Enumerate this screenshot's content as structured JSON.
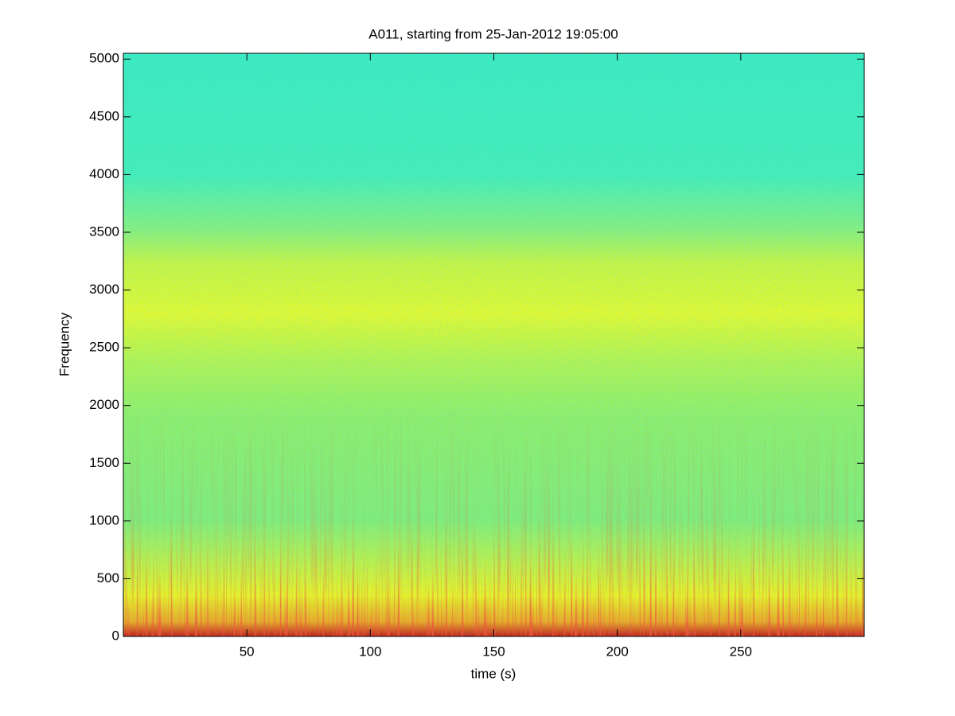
{
  "chart_data": {
    "type": "spectrogram",
    "title": "A011, starting from 25-Jan-2012 19:05:00",
    "x_label": "time (s)",
    "y_label": "Frequency",
    "xlim": [
      0,
      300
    ],
    "xticks": [
      50,
      100,
      150,
      200,
      250
    ],
    "ylim": [
      0,
      5050
    ],
    "yticks": [
      0,
      500,
      1000,
      1500,
      2000,
      2500,
      3000,
      3500,
      4000,
      4500,
      5000
    ]
  }
}
